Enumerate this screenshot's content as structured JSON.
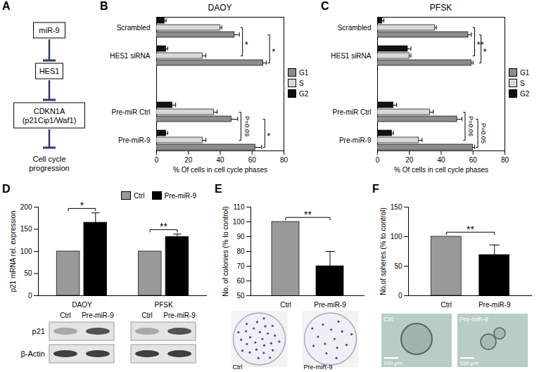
{
  "diagram": {
    "panel": "A",
    "nodes": [
      [
        "miR-9"
      ],
      [
        "HES1"
      ],
      [
        "CDKN1A",
        "(p21Cip1/Waf1)"
      ],
      [
        "Cell cycle",
        "progression"
      ]
    ]
  },
  "chart_data": [
    {
      "panel": "B",
      "type": "bar",
      "orientation": "horizontal",
      "title": "DAOY",
      "categories": [
        "Scrambled",
        "HES1 siRNA",
        null,
        "Pre-miR Ctrl",
        "Pre-miR-9"
      ],
      "series": [
        {
          "name": "G1",
          "color": "#8c8c8c",
          "values": [
            49,
            67,
            null,
            47,
            62
          ],
          "errors": [
            3,
            2,
            null,
            4,
            4
          ]
        },
        {
          "name": "S",
          "color": "#d9d9d9",
          "values": [
            40,
            29,
            null,
            36,
            29
          ],
          "errors": [
            1,
            2,
            null,
            2,
            2
          ]
        },
        {
          "name": "G2",
          "color": "#111111",
          "values": [
            5,
            6,
            null,
            10,
            6
          ],
          "errors": [
            1,
            1,
            null,
            2,
            1
          ]
        }
      ],
      "xlim": [
        0,
        80
      ],
      "xticks": [
        0,
        20,
        40,
        60,
        80
      ],
      "x_label": "% Of cells in cell cycle phases",
      "legend": "right",
      "annotations": [
        {
          "text": "*",
          "series": "S",
          "between": [
            "Scrambled",
            "HES1 siRNA"
          ]
        },
        {
          "text": "*",
          "series": "G1",
          "between": [
            "Scrambled",
            "HES1 siRNA"
          ]
        },
        {
          "text": "P=0.09",
          "series": "S",
          "between": [
            "Pre-miR Ctrl",
            "Pre-miR-9"
          ]
        },
        {
          "text": "*",
          "series": "G1",
          "between": [
            "Pre-miR Ctrl",
            "Pre-miR-9"
          ]
        }
      ]
    },
    {
      "panel": "C",
      "type": "bar",
      "orientation": "horizontal",
      "title": "PFSK",
      "categories": [
        "Scrambled",
        "HES1 siRNA",
        null,
        "Pre-miR Ctrl",
        "Pre-miR-9"
      ],
      "series": [
        {
          "name": "G1",
          "color": "#8c8c8c",
          "values": [
            57,
            59,
            null,
            50,
            60
          ],
          "errors": [
            2,
            1,
            null,
            3,
            1
          ]
        },
        {
          "name": "S",
          "color": "#d9d9d9",
          "values": [
            36,
            20,
            null,
            33,
            26
          ],
          "errors": [
            1,
            1,
            null,
            2,
            2
          ]
        },
        {
          "name": "G2",
          "color": "#111111",
          "values": [
            3,
            19,
            null,
            10,
            9
          ],
          "errors": [
            1,
            2,
            null,
            2,
            1
          ]
        }
      ],
      "xlim": [
        0,
        80
      ],
      "xticks": [
        0,
        20,
        40,
        60,
        80
      ],
      "x_label": "% Of cells in cell cycle phases",
      "legend": "right",
      "annotations": [
        {
          "text": "**",
          "series": "S",
          "between": [
            "Scrambled",
            "HES1 siRNA"
          ]
        },
        {
          "text": "*",
          "series": "G1",
          "between": [
            "Scrambled",
            "HES1 siRNA"
          ]
        },
        {
          "text": "P=0.06",
          "series": "S",
          "between": [
            "Pre-miR Ctrl",
            "Pre-miR-9"
          ]
        },
        {
          "text": "P=0.05",
          "series": "G1",
          "between": [
            "Pre-miR Ctrl",
            "Pre-miR-9"
          ]
        }
      ]
    },
    {
      "panel": "D",
      "type": "bar",
      "categories": [
        "DAOY",
        "PFSK"
      ],
      "series": [
        {
          "name": "Ctrl",
          "color": "#999999",
          "values": [
            100,
            100
          ],
          "errors": [
            null,
            null
          ]
        },
        {
          "name": "Pre-miR-9",
          "color": "#000000",
          "values": [
            165,
            133
          ],
          "errors": [
            22,
            6
          ]
        }
      ],
      "ylim": [
        0,
        200
      ],
      "yticks": [
        0,
        50,
        100,
        150,
        200
      ],
      "y_label": "p21 mRNA rel. expression",
      "legend": "top right",
      "annotations": [
        {
          "text": "*",
          "category": "DAOY"
        },
        {
          "text": "**",
          "category": "PFSK"
        }
      ],
      "blot": {
        "lanes": [
          "Ctrl",
          "Pre-miR-9"
        ],
        "rows": [
          "p21",
          "β-Actin"
        ]
      }
    },
    {
      "panel": "E",
      "type": "bar",
      "categories": [
        "Ctrl",
        "Pre-miR-9"
      ],
      "values": [
        100,
        70
      ],
      "errors": [
        null,
        10
      ],
      "colors": [
        "#999999",
        "#000000"
      ],
      "ylim": [
        50,
        110
      ],
      "yticks": [
        50,
        60,
        70,
        80,
        90,
        100,
        110
      ],
      "y_label": "No. of colonies (% to control)",
      "annotations": [
        {
          "text": "**",
          "between": [
            "Ctrl",
            "Pre-miR-9"
          ]
        }
      ],
      "images": [
        {
          "label": "Ctrl"
        },
        {
          "label": "Pre-miR-9"
        }
      ]
    },
    {
      "panel": "F",
      "type": "bar",
      "categories": [
        "Ctrl",
        "Pre-miR-9"
      ],
      "values": [
        100,
        69
      ],
      "errors": [
        null,
        17
      ],
      "colors": [
        "#999999",
        "#000000"
      ],
      "ylim": [
        0,
        150
      ],
      "yticks": [
        0,
        50,
        100,
        150
      ],
      "y_label": "No.of spheres (% to control)",
      "annotations": [
        {
          "text": "**",
          "between": [
            "Ctrl",
            "Pre-miR-9"
          ]
        }
      ],
      "images": [
        {
          "label": "Ctrl",
          "scale_bar": "100 μm"
        },
        {
          "label": "Pre-miR-9",
          "scale_bar": "100 μm"
        }
      ]
    }
  ]
}
